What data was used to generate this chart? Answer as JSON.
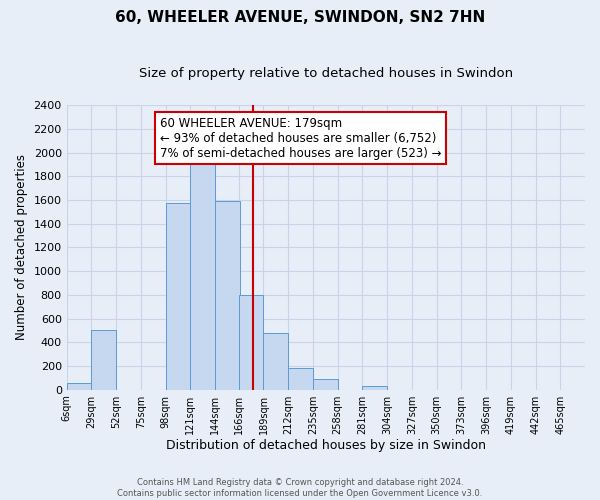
{
  "title": "60, WHEELER AVENUE, SWINDON, SN2 7HN",
  "subtitle": "Size of property relative to detached houses in Swindon",
  "xlabel": "Distribution of detached houses by size in Swindon",
  "ylabel": "Number of detached properties",
  "bar_left_edges": [
    6,
    29,
    52,
    75,
    98,
    121,
    144,
    166,
    189,
    212,
    235,
    258,
    281,
    304,
    327,
    350,
    373,
    396,
    419,
    442
  ],
  "bar_heights": [
    55,
    500,
    0,
    0,
    1575,
    1950,
    1590,
    800,
    480,
    185,
    90,
    0,
    30,
    0,
    0,
    0,
    0,
    0,
    0,
    0
  ],
  "bin_width": 23,
  "bar_facecolor": "#c5d8ef",
  "bar_edgecolor": "#5b9bd5",
  "vline_x": 179,
  "vline_color": "#cc0000",
  "annotation_text": "60 WHEELER AVENUE: 179sqm\n← 93% of detached houses are smaller (6,752)\n7% of semi-detached houses are larger (523) →",
  "annotation_box_edgecolor": "#cc0000",
  "annotation_box_facecolor": "#ffffff",
  "annotation_fontsize": 8.5,
  "ylim": [
    0,
    2400
  ],
  "yticks": [
    0,
    200,
    400,
    600,
    800,
    1000,
    1200,
    1400,
    1600,
    1800,
    2000,
    2200,
    2400
  ],
  "xtick_labels": [
    "6sqm",
    "29sqm",
    "52sqm",
    "75sqm",
    "98sqm",
    "121sqm",
    "144sqm",
    "166sqm",
    "189sqm",
    "212sqm",
    "235sqm",
    "258sqm",
    "281sqm",
    "304sqm",
    "327sqm",
    "350sqm",
    "373sqm",
    "396sqm",
    "419sqm",
    "442sqm",
    "465sqm"
  ],
  "xtick_positions": [
    6,
    29,
    52,
    75,
    98,
    121,
    144,
    166,
    189,
    212,
    235,
    258,
    281,
    304,
    327,
    350,
    373,
    396,
    419,
    442,
    465
  ],
  "grid_color": "#c8d4e8",
  "background_color": "#e8eef8",
  "plot_bg_color": "#e8eef8",
  "footer_line1": "Contains HM Land Registry data © Crown copyright and database right 2024.",
  "footer_line2": "Contains public sector information licensed under the Open Government Licence v3.0.",
  "title_fontsize": 11,
  "subtitle_fontsize": 9.5,
  "xlabel_fontsize": 9,
  "ylabel_fontsize": 8.5,
  "ytick_fontsize": 8,
  "xtick_fontsize": 7
}
